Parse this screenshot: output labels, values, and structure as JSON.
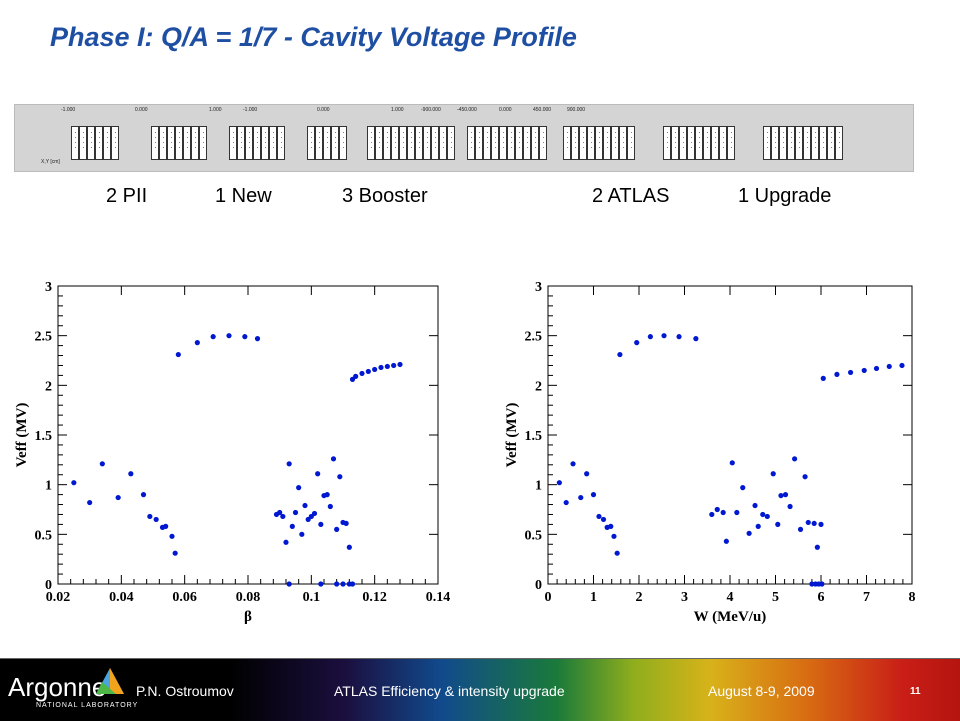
{
  "slide": {
    "title": "Phase I: Q/A = 1/7 - Cavity Voltage Profile",
    "page_number": "11"
  },
  "strip": {
    "tick_labels": [
      "-1.000",
      "0.000",
      "1.000",
      "-1.000",
      "0.000",
      "1.000",
      "-900.000",
      "-450.000",
      "0.000",
      "450.000",
      "900.000"
    ],
    "axis_label": "X,Y [cm]"
  },
  "groups": [
    {
      "label": "2 PII"
    },
    {
      "label": "1 New"
    },
    {
      "label": "3 Booster"
    },
    {
      "label": "2 ATLAS"
    },
    {
      "label": "1 Upgrade"
    }
  ],
  "footer": {
    "logo_text": "Argonne",
    "logo_subtext": "NATIONAL LABORATORY",
    "author": "P.N. Ostroumov",
    "talk_title": "ATLAS Efficiency & intensity upgrade",
    "date": "August 8-9, 2009"
  },
  "colors": {
    "title": "#1f4fa3",
    "marker": "#0018d0"
  },
  "chart_data": [
    {
      "type": "scatter",
      "title": "",
      "xlabel": "β",
      "ylabel": "Veff (MV)",
      "xlim": [
        0.02,
        0.14
      ],
      "ylim": [
        0,
        3
      ],
      "x_ticks": [
        0.02,
        0.04,
        0.06,
        0.08,
        0.1,
        0.12,
        0.14
      ],
      "x_tick_labels": [
        "0.02",
        "0.04",
        "0.06",
        "0.08",
        "0.1",
        "0.12",
        "0.14"
      ],
      "y_ticks": [
        0,
        0.5,
        1,
        1.5,
        2,
        2.5,
        3
      ],
      "y_tick_labels": [
        "0",
        "0.5",
        "1",
        "1.5",
        "2",
        "2.5",
        "3"
      ],
      "grid": false,
      "series": [
        {
          "x": [
            0.025,
            0.03,
            0.034,
            0.039,
            0.043,
            0.047,
            0.049,
            0.051,
            0.053,
            0.054,
            0.056,
            0.057,
            0.058,
            0.064,
            0.069,
            0.074,
            0.079,
            0.083,
            0.089,
            0.09,
            0.091,
            0.092,
            0.093,
            0.094,
            0.095,
            0.096,
            0.097,
            0.098,
            0.099,
            0.1,
            0.101,
            0.102,
            0.103,
            0.104,
            0.105,
            0.106,
            0.107,
            0.108,
            0.109,
            0.11,
            0.111,
            0.112,
            0.113,
            0.114,
            0.116,
            0.118,
            0.12,
            0.122,
            0.124,
            0.126,
            0.128,
            0.093,
            0.103,
            0.108,
            0.11,
            0.112,
            0.113
          ],
          "y": [
            1.02,
            0.82,
            1.21,
            0.87,
            1.11,
            0.9,
            0.68,
            0.65,
            0.57,
            0.58,
            0.48,
            0.31,
            2.31,
            2.43,
            2.49,
            2.5,
            2.49,
            2.47,
            0.7,
            0.72,
            0.68,
            0.42,
            1.21,
            0.58,
            0.72,
            0.97,
            0.5,
            0.79,
            0.65,
            0.68,
            0.71,
            1.11,
            0.6,
            0.89,
            0.9,
            0.78,
            1.26,
            0.55,
            1.08,
            0.62,
            0.61,
            0.37,
            2.06,
            2.09,
            2.12,
            2.14,
            2.16,
            2.18,
            2.19,
            2.2,
            2.21,
            0.0,
            0.0,
            0.0,
            0.0,
            0.0,
            0.0
          ]
        }
      ]
    },
    {
      "type": "scatter",
      "title": "",
      "xlabel": "W (MeV/u)",
      "ylabel": "Veff (MV)",
      "xlim": [
        0,
        8
      ],
      "ylim": [
        0,
        3
      ],
      "x_ticks": [
        0,
        1,
        2,
        3,
        4,
        5,
        6,
        7,
        8
      ],
      "x_tick_labels": [
        "0",
        "1",
        "2",
        "3",
        "4",
        "5",
        "6",
        "7",
        "8"
      ],
      "y_ticks": [
        0,
        0.5,
        1,
        1.5,
        2,
        2.5,
        3
      ],
      "y_tick_labels": [
        "0",
        "0.5",
        "1",
        "1.5",
        "2",
        "2.5",
        "3"
      ],
      "grid": false,
      "series": [
        {
          "x": [
            0.25,
            0.4,
            0.55,
            0.72,
            0.85,
            1.0,
            1.12,
            1.22,
            1.3,
            1.38,
            1.45,
            1.52,
            1.58,
            1.95,
            2.25,
            2.55,
            2.88,
            3.25,
            3.6,
            3.72,
            3.85,
            3.92,
            4.05,
            4.15,
            4.28,
            4.42,
            4.55,
            4.62,
            4.72,
            4.82,
            4.95,
            5.05,
            5.12,
            5.22,
            5.32,
            5.42,
            5.55,
            5.65,
            5.72,
            5.85,
            5.92,
            6.0,
            6.05,
            6.35,
            6.65,
            6.95,
            7.22,
            7.5,
            7.78,
            5.8,
            5.88,
            5.95,
            6.02
          ],
          "y": [
            1.02,
            0.82,
            1.21,
            0.87,
            1.11,
            0.9,
            0.68,
            0.65,
            0.57,
            0.58,
            0.48,
            0.31,
            2.31,
            2.43,
            2.49,
            2.5,
            2.49,
            2.47,
            0.7,
            0.75,
            0.72,
            0.43,
            1.22,
            0.72,
            0.97,
            0.51,
            0.79,
            0.58,
            0.7,
            0.68,
            1.11,
            0.6,
            0.89,
            0.9,
            0.78,
            1.26,
            0.55,
            1.08,
            0.62,
            0.61,
            0.37,
            0.6,
            2.07,
            2.11,
            2.13,
            2.15,
            2.17,
            2.19,
            2.2,
            0.0,
            0.0,
            0.0,
            0.0
          ]
        }
      ]
    }
  ]
}
